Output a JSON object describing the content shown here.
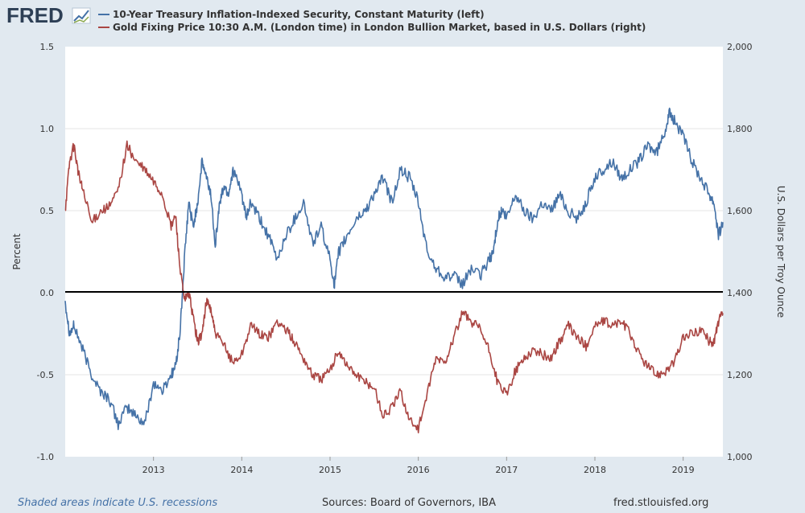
{
  "logo": {
    "text": "FRED"
  },
  "legend": [
    {
      "label": "10-Year Treasury Inflation-Indexed Security, Constant Maturity (left)",
      "color": "#4572a7"
    },
    {
      "label": "Gold Fixing Price 10:30 A.M. (London time) in London Bullion Market, based in U.S. Dollars (right)",
      "color": "#aa4643"
    }
  ],
  "footer": {
    "recession_note": "Shaded areas indicate U.S. recessions",
    "sources": "Sources: Board of Governors, IBA",
    "site": "fred.stlouisfed.org"
  },
  "chart_data": {
    "type": "line",
    "x_ticks": [
      "2013",
      "2014",
      "2015",
      "2016",
      "2017",
      "2018",
      "2019"
    ],
    "x_range": [
      2012.0,
      2019.45
    ],
    "y_left": {
      "label": "Percent",
      "range": [
        -1.0,
        1.5
      ],
      "ticks": [
        "1.5",
        "1.0",
        "0.5",
        "0.0",
        "-0.5",
        "-1.0"
      ]
    },
    "y_right": {
      "label": "U.S. Dollars per Troy Ounce",
      "range": [
        1000,
        2000
      ],
      "ticks": [
        "2,000",
        "1,800",
        "1,600",
        "1,400",
        "1,200",
        "1,000"
      ]
    },
    "zero_line": 0.0,
    "series": [
      {
        "name": "10-Year Treasury Inflation-Indexed Security, Constant Maturity (left)",
        "axis": "left",
        "color": "#4572a7",
        "x": [
          2012.0,
          2012.05,
          2012.1,
          2012.2,
          2012.3,
          2012.4,
          2012.5,
          2012.6,
          2012.7,
          2012.8,
          2012.9,
          2013.0,
          2013.1,
          2013.2,
          2013.25,
          2013.3,
          2013.35,
          2013.4,
          2013.45,
          2013.5,
          2013.55,
          2013.6,
          2013.65,
          2013.7,
          2013.75,
          2013.8,
          2013.85,
          2013.9,
          2014.0,
          2014.05,
          2014.1,
          2014.2,
          2014.3,
          2014.4,
          2014.5,
          2014.6,
          2014.7,
          2014.8,
          2014.9,
          2015.0,
          2015.05,
          2015.1,
          2015.2,
          2015.3,
          2015.4,
          2015.5,
          2015.6,
          2015.7,
          2015.8,
          2015.9,
          2016.0,
          2016.1,
          2016.2,
          2016.3,
          2016.4,
          2016.5,
          2016.6,
          2016.7,
          2016.8,
          2016.85,
          2016.9,
          2016.95,
          2017.0,
          2017.1,
          2017.2,
          2017.3,
          2017.4,
          2017.5,
          2017.6,
          2017.7,
          2017.8,
          2017.9,
          2018.0,
          2018.1,
          2018.2,
          2018.3,
          2018.4,
          2018.5,
          2018.6,
          2018.7,
          2018.8,
          2018.85,
          2018.9,
          2019.0,
          2019.1,
          2019.2,
          2019.3,
          2019.35,
          2019.4,
          2019.45
        ],
        "values": [
          -0.05,
          -0.25,
          -0.2,
          -0.35,
          -0.5,
          -0.6,
          -0.65,
          -0.8,
          -0.7,
          -0.75,
          -0.8,
          -0.55,
          -0.6,
          -0.5,
          -0.45,
          -0.25,
          0.2,
          0.55,
          0.4,
          0.55,
          0.8,
          0.7,
          0.6,
          0.3,
          0.55,
          0.65,
          0.6,
          0.75,
          0.6,
          0.45,
          0.55,
          0.45,
          0.35,
          0.2,
          0.35,
          0.45,
          0.55,
          0.3,
          0.4,
          0.2,
          0.05,
          0.25,
          0.35,
          0.45,
          0.5,
          0.6,
          0.7,
          0.55,
          0.75,
          0.7,
          0.55,
          0.25,
          0.15,
          0.1,
          0.1,
          0.05,
          0.15,
          0.1,
          0.2,
          0.25,
          0.45,
          0.5,
          0.45,
          0.6,
          0.5,
          0.45,
          0.55,
          0.5,
          0.6,
          0.5,
          0.45,
          0.55,
          0.7,
          0.75,
          0.8,
          0.7,
          0.75,
          0.8,
          0.9,
          0.85,
          1.0,
          1.1,
          1.05,
          0.95,
          0.8,
          0.7,
          0.6,
          0.55,
          0.35,
          0.43
        ]
      },
      {
        "name": "Gold Fixing Price 10:30 A.M. (London time) in London Bullion Market, based in U.S. Dollars (right)",
        "axis": "right",
        "color": "#aa4643",
        "x": [
          2012.0,
          2012.05,
          2012.1,
          2012.15,
          2012.2,
          2012.3,
          2012.4,
          2012.5,
          2012.6,
          2012.7,
          2012.8,
          2012.9,
          2013.0,
          2013.1,
          2013.2,
          2013.25,
          2013.3,
          2013.35,
          2013.4,
          2013.45,
          2013.5,
          2013.55,
          2013.6,
          2013.65,
          2013.7,
          2013.8,
          2013.9,
          2014.0,
          2014.1,
          2014.2,
          2014.3,
          2014.4,
          2014.5,
          2014.6,
          2014.7,
          2014.8,
          2014.9,
          2015.0,
          2015.1,
          2015.2,
          2015.3,
          2015.4,
          2015.5,
          2015.6,
          2015.7,
          2015.8,
          2015.9,
          2016.0,
          2016.1,
          2016.2,
          2016.3,
          2016.4,
          2016.5,
          2016.6,
          2016.7,
          2016.8,
          2016.9,
          2017.0,
          2017.1,
          2017.2,
          2017.3,
          2017.4,
          2017.5,
          2017.6,
          2017.7,
          2017.8,
          2017.9,
          2018.0,
          2018.1,
          2018.2,
          2018.3,
          2018.4,
          2018.5,
          2018.6,
          2018.7,
          2018.8,
          2018.9,
          2019.0,
          2019.1,
          2019.2,
          2019.3,
          2019.35,
          2019.4,
          2019.45
        ],
        "values": [
          1600,
          1720,
          1760,
          1690,
          1650,
          1570,
          1600,
          1610,
          1650,
          1760,
          1720,
          1700,
          1670,
          1640,
          1560,
          1590,
          1460,
          1380,
          1400,
          1340,
          1280,
          1300,
          1380,
          1360,
          1300,
          1270,
          1230,
          1250,
          1320,
          1300,
          1290,
          1330,
          1310,
          1280,
          1240,
          1200,
          1190,
          1210,
          1260,
          1220,
          1200,
          1180,
          1170,
          1100,
          1120,
          1160,
          1090,
          1070,
          1150,
          1240,
          1230,
          1290,
          1350,
          1330,
          1310,
          1260,
          1180,
          1150,
          1210,
          1240,
          1260,
          1250,
          1240,
          1280,
          1320,
          1290,
          1270,
          1320,
          1330,
          1320,
          1330,
          1300,
          1250,
          1220,
          1200,
          1210,
          1230,
          1290,
          1300,
          1310,
          1280,
          1280,
          1330,
          1350
        ]
      }
    ]
  }
}
